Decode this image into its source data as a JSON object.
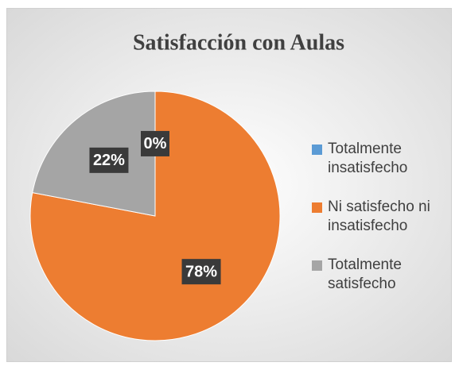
{
  "chart_data": {
    "type": "pie",
    "title": "Satisfacción con Aulas",
    "categories": [
      "Totalmente insatisfecho",
      "Ni satisfecho ni insatisfecho",
      "Totalmente satisfecho"
    ],
    "values": [
      0,
      78,
      22
    ],
    "value_labels": [
      "0%",
      "78%",
      "22%"
    ],
    "colors": [
      "#5b9bd5",
      "#ed7d31",
      "#a5a5a5"
    ],
    "legend": "right"
  }
}
